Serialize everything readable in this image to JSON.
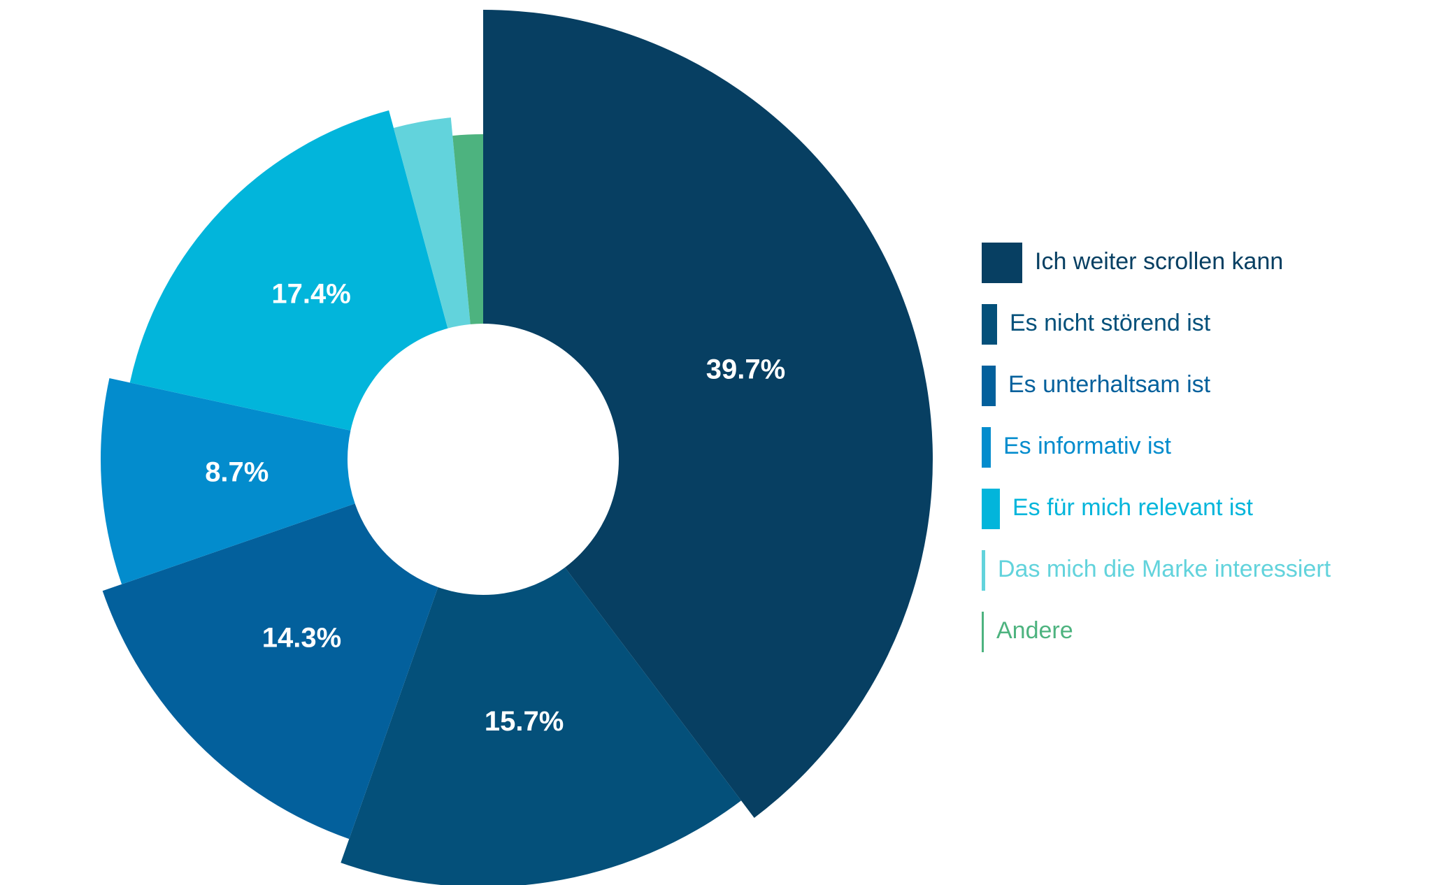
{
  "chart_data": {
    "type": "donut",
    "categories": [
      "Ich weiter scrollen kann",
      "Es nicht störend ist",
      "Es unterhaltsam ist",
      "Es informativ ist",
      "Es für mich relevant ist",
      "Das mich die Marke interessiert",
      "Andere"
    ],
    "values": [
      39.7,
      15.7,
      14.3,
      8.7,
      17.4,
      2.7,
      1.5
    ],
    "value_labels": [
      "39.7%",
      "15.7%",
      "14.3%",
      "8.7%",
      "17.4%",
      null,
      null
    ],
    "colors": [
      "#073f62",
      "#04507a",
      "#03609c",
      "#038ccd",
      "#02b5db",
      "#62d3dc",
      "#4db37f"
    ],
    "legend": "right"
  }
}
